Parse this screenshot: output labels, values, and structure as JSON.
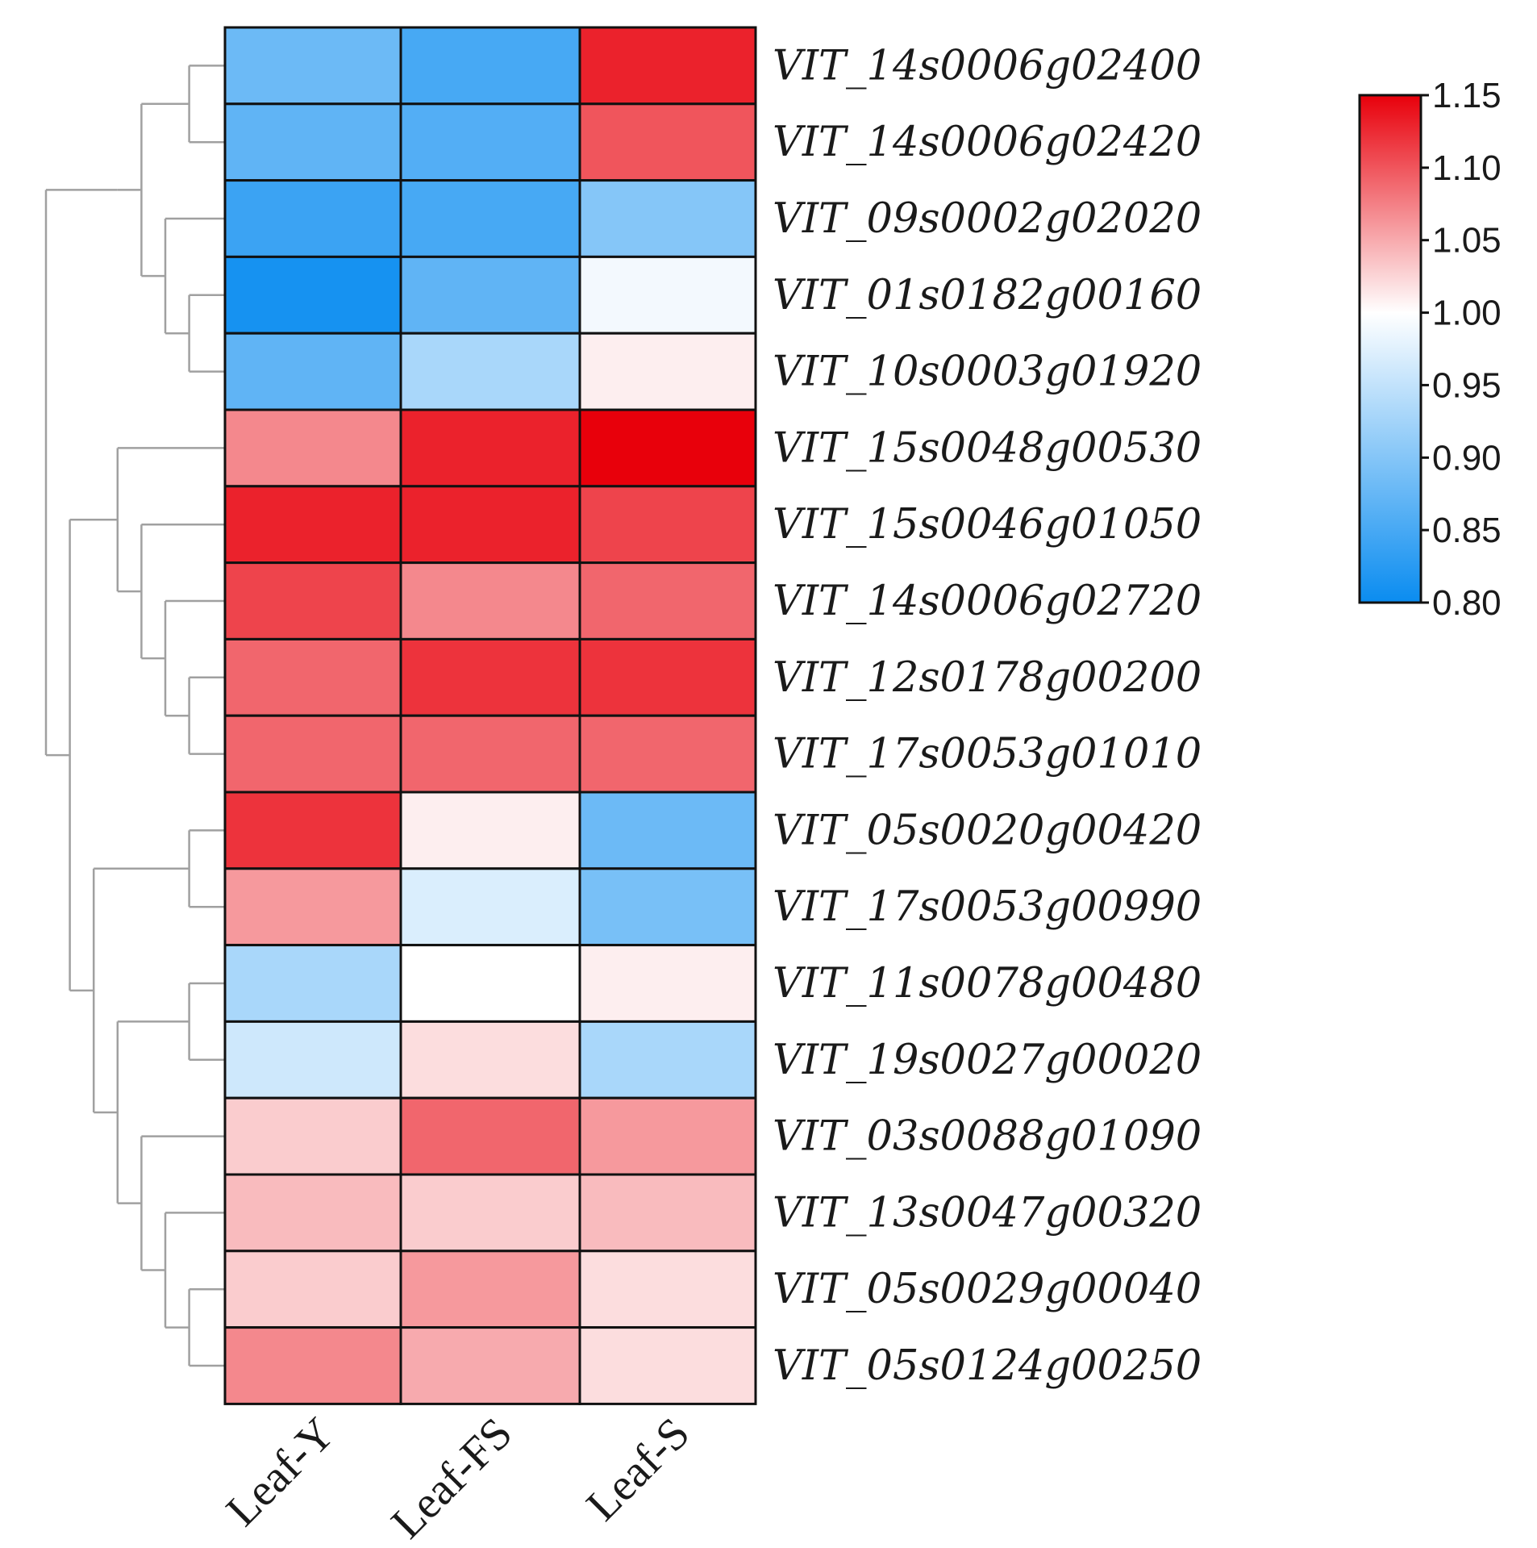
{
  "chart_data": {
    "type": "heatmap",
    "title": "",
    "columns": [
      "Leaf-Y",
      "Leaf-FS",
      "Leaf-S"
    ],
    "rows": [
      "VIT_14s0006g02400",
      "VIT_14s0006g02420",
      "VIT_09s0002g02020",
      "VIT_01s0182g00160",
      "VIT_10s0003g01920",
      "VIT_15s0048g00530",
      "VIT_15s0046g01050",
      "VIT_14s0006g02720",
      "VIT_12s0178g00200",
      "VIT_17s0053g01010",
      "VIT_05s0020g00420",
      "VIT_17s0053g00990",
      "VIT_11s0078g00480",
      "VIT_19s0027g00020",
      "VIT_03s0088g01090",
      "VIT_13s0047g00320",
      "VIT_05s0029g00040",
      "VIT_05s0124g00250"
    ],
    "values": [
      [
        0.88,
        0.85,
        1.13
      ],
      [
        0.87,
        0.86,
        1.1
      ],
      [
        0.84,
        0.85,
        0.9
      ],
      [
        0.81,
        0.87,
        0.99
      ],
      [
        0.87,
        0.93,
        1.01
      ],
      [
        1.07,
        1.13,
        1.15
      ],
      [
        1.13,
        1.13,
        1.11
      ],
      [
        1.11,
        1.07,
        1.09
      ],
      [
        1.09,
        1.12,
        1.12
      ],
      [
        1.09,
        1.09,
        1.09
      ],
      [
        1.12,
        1.01,
        0.88
      ],
      [
        1.06,
        0.97,
        0.89
      ],
      [
        0.93,
        1.0,
        1.01
      ],
      [
        0.96,
        1.02,
        0.93
      ],
      [
        1.03,
        1.09,
        1.06
      ],
      [
        1.04,
        1.03,
        1.04
      ],
      [
        1.03,
        1.06,
        1.02
      ],
      [
        1.07,
        1.05,
        1.02
      ]
    ],
    "colorbar": {
      "min": 0.8,
      "max": 1.15,
      "ticks": [
        1.15,
        1.1,
        1.05,
        1.0,
        0.95,
        0.9,
        0.85,
        0.8
      ],
      "tick_labels": [
        "1.15",
        "1.10",
        "1.05",
        "1.00",
        "0.95",
        "0.90",
        "0.85",
        "0.80"
      ],
      "low_color": "#0a8cf0",
      "mid_color": "#ffffff",
      "high_color": "#e8000b",
      "mid_value": 1.0
    },
    "dendrogram": {
      "side": "left",
      "color": "#a0a0a0",
      "tree": [
        [
          [
            [
              0,
              1
            ],
            [
              2,
              [
                3,
                4
              ]
            ]
          ]
        ],
        [
          [
            5,
            [
              6,
              [
                7,
                [
                  8,
                  9
                ]
              ]
            ]
          ],
          [
            [
              10,
              11
            ],
            [
              [
                12,
                13
              ],
              [
                14,
                [
                  15,
                  [
                    16,
                    17
                  ]
                ]
              ]
            ]
          ]
        ]
      ]
    }
  }
}
